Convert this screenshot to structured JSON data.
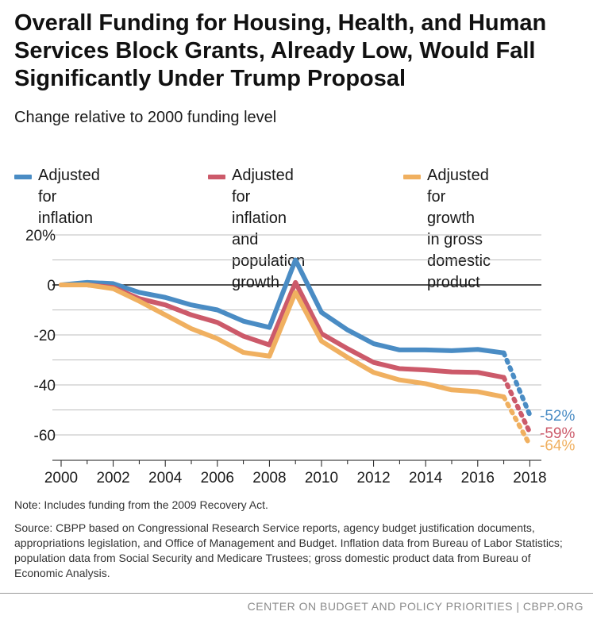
{
  "title": "Overall Funding for Housing, Health, and Human Services Block Grants, Already Low, Would Fall Significantly Under Trump Proposal",
  "subtitle": "Change relative to 2000 funding level",
  "note": "Note: Includes funding from the 2009 Recovery Act.",
  "source": "Source: CBPP based on Congressional Research Service reports, agency budget justification documents, appropriations legislation, and Office of Management and Budget. Inflation data from Bureau of Labor Statistics; population data from Social Security and Medicare Trustees; gross domestic product data from Bureau of Economic Analysis.",
  "footer": "CENTER ON BUDGET AND POLICY PRIORITIES | CBPP.ORG",
  "colors": {
    "inflation": "#4a8cc4",
    "population": "#cc5a6a",
    "gdp": "#f0b060",
    "grid": "#bdbdbd",
    "zero_line": "#1a1a1a"
  },
  "chart_data": {
    "type": "line",
    "xlabel": "",
    "ylabel": "",
    "x": [
      2000,
      2001,
      2002,
      2003,
      2004,
      2005,
      2006,
      2007,
      2008,
      2009,
      2010,
      2011,
      2012,
      2013,
      2014,
      2015,
      2016,
      2017
    ],
    "xlim": [
      2000,
      2018
    ],
    "ylim": [
      -70,
      20
    ],
    "y_ticks": [
      20,
      0,
      -20,
      -40,
      -60
    ],
    "y_tick_labels": [
      "20%",
      "0",
      "-20",
      "-40",
      "-60"
    ],
    "x_ticks": [
      2000,
      2002,
      2004,
      2006,
      2008,
      2010,
      2012,
      2014,
      2016,
      2018
    ],
    "x_tick_labels": [
      "2000",
      "2002",
      "2004",
      "2006",
      "2008",
      "2010",
      "2012",
      "2014",
      "2016",
      "2018"
    ],
    "grid": true,
    "legend_position": "top",
    "series": [
      {
        "name": "Adjusted for inflation",
        "color_key": "inflation",
        "values": [
          0,
          1,
          0.5,
          -3,
          -5,
          -8,
          -10,
          -14.5,
          -17,
          10,
          -11,
          -18,
          -23.5,
          -26,
          -26,
          -26.3,
          -25.8,
          -27.2
        ],
        "projection": {
          "x": 2018,
          "value": -52,
          "label": "-52%"
        }
      },
      {
        "name": "Adjusted for inflation and population growth",
        "color_key": "population",
        "values": [
          0,
          0,
          -1,
          -5.5,
          -8,
          -12,
          -15,
          -20.5,
          -24,
          1,
          -19.5,
          -25.5,
          -31,
          -33.5,
          -34,
          -34.8,
          -35,
          -37
        ],
        "projection": {
          "x": 2018,
          "value": -59,
          "label": "-59%"
        }
      },
      {
        "name": "Adjusted for growth in gross domestic product",
        "color_key": "gdp",
        "values": [
          0,
          0,
          -1.5,
          -6.5,
          -12,
          -17.5,
          -21.5,
          -27,
          -28.5,
          -3,
          -22.5,
          -29,
          -35,
          -38,
          -39.5,
          -42,
          -42.7,
          -44.8
        ],
        "projection": {
          "x": 2018,
          "value": -64,
          "label": "-64%"
        }
      }
    ]
  },
  "legend": [
    {
      "label": "Adjusted for inflation",
      "color_key": "inflation"
    },
    {
      "label": "Adjusted for inflation\nand population\ngrowth",
      "color_key": "population"
    },
    {
      "label": "Adjusted for growth\nin gross domestic\nproduct",
      "color_key": "gdp"
    }
  ]
}
